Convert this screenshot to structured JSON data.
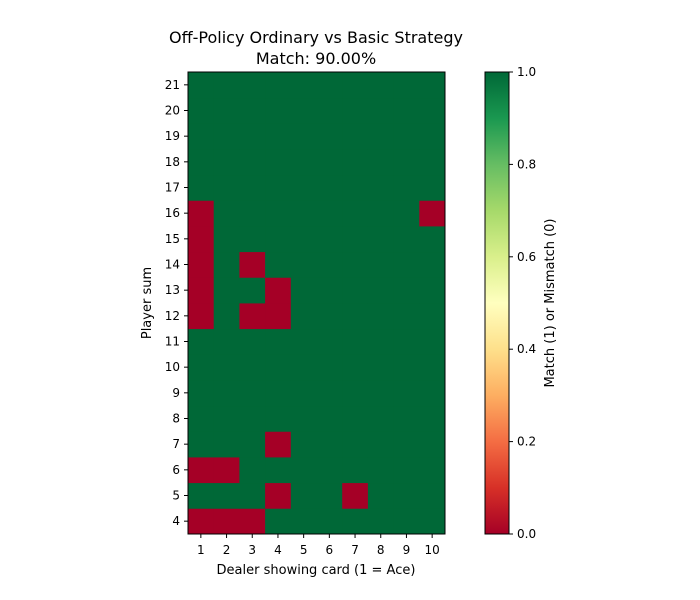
{
  "chart_data": {
    "type": "heatmap",
    "title": "Off-Policy Ordinary vs Basic Strategy",
    "subtitle": "Match: 90.00%",
    "xlabel": "Dealer showing card (1 = Ace)",
    "ylabel": "Player sum",
    "x_categories": [
      1,
      2,
      3,
      4,
      5,
      6,
      7,
      8,
      9,
      10
    ],
    "y_categories": [
      4,
      5,
      6,
      7,
      8,
      9,
      10,
      11,
      12,
      13,
      14,
      15,
      16,
      17,
      18,
      19,
      20,
      21
    ],
    "values": [
      [
        0,
        0,
        0,
        1,
        1,
        1,
        1,
        1,
        1,
        1
      ],
      [
        1,
        1,
        1,
        0,
        1,
        1,
        0,
        1,
        1,
        1
      ],
      [
        0,
        0,
        1,
        1,
        1,
        1,
        1,
        1,
        1,
        1
      ],
      [
        1,
        1,
        1,
        0,
        1,
        1,
        1,
        1,
        1,
        1
      ],
      [
        1,
        1,
        1,
        1,
        1,
        1,
        1,
        1,
        1,
        1
      ],
      [
        1,
        1,
        1,
        1,
        1,
        1,
        1,
        1,
        1,
        1
      ],
      [
        1,
        1,
        1,
        1,
        1,
        1,
        1,
        1,
        1,
        1
      ],
      [
        1,
        1,
        1,
        1,
        1,
        1,
        1,
        1,
        1,
        1
      ],
      [
        0,
        1,
        0,
        0,
        1,
        1,
        1,
        1,
        1,
        1
      ],
      [
        0,
        1,
        1,
        0,
        1,
        1,
        1,
        1,
        1,
        1
      ],
      [
        0,
        1,
        0,
        1,
        1,
        1,
        1,
        1,
        1,
        1
      ],
      [
        0,
        1,
        1,
        1,
        1,
        1,
        1,
        1,
        1,
        1
      ],
      [
        0,
        1,
        1,
        1,
        1,
        1,
        1,
        1,
        1,
        0
      ],
      [
        1,
        1,
        1,
        1,
        1,
        1,
        1,
        1,
        1,
        1
      ],
      [
        1,
        1,
        1,
        1,
        1,
        1,
        1,
        1,
        1,
        1
      ],
      [
        1,
        1,
        1,
        1,
        1,
        1,
        1,
        1,
        1,
        1
      ],
      [
        1,
        1,
        1,
        1,
        1,
        1,
        1,
        1,
        1,
        1
      ],
      [
        1,
        1,
        1,
        1,
        1,
        1,
        1,
        1,
        1,
        1
      ]
    ],
    "colormap": "RdYlGn",
    "color_range": [
      0.0,
      1.0
    ],
    "colorbar": {
      "label": "Match (1) or Mismatch (0)",
      "ticks": [
        0.0,
        0.2,
        0.4,
        0.6,
        0.8,
        1.0
      ],
      "tick_labels": [
        "0.0",
        "0.2",
        "0.4",
        "0.6",
        "0.8",
        "1.0"
      ]
    },
    "colors": {
      "match": "#006837",
      "mismatch": "#a50026"
    },
    "grid": false
  }
}
